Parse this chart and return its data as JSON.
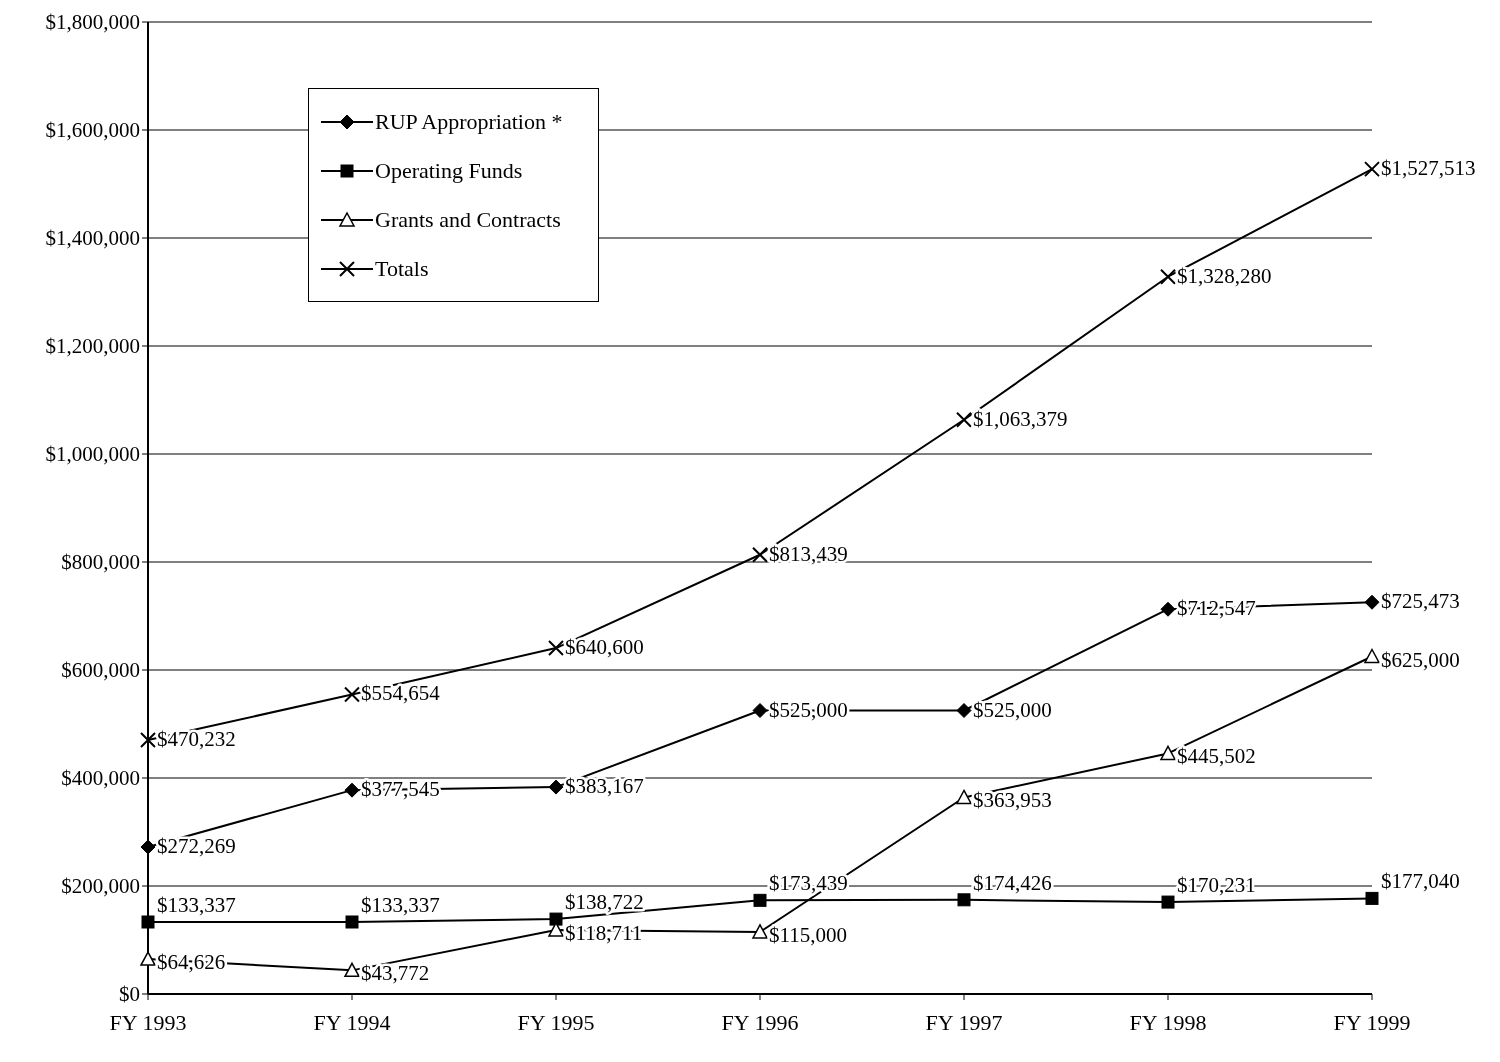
{
  "chart_data": {
    "type": "line",
    "categories": [
      "FY 1993",
      "FY 1994",
      "FY 1995",
      "FY 1996",
      "FY 1997",
      "FY 1998",
      "FY 1999"
    ],
    "series": [
      {
        "name": "RUP Appropriation *",
        "color": "#000000",
        "marker": "diamond",
        "values": [
          272269,
          377545,
          383167,
          525000,
          525000,
          712547,
          725473
        ],
        "value_labels": [
          "$272,269",
          "$377,545",
          "$383,167",
          "$525,000",
          "$525,000",
          "$712,547",
          "$725,473"
        ]
      },
      {
        "name": "Operating Funds",
        "color": "#000000",
        "marker": "square",
        "values": [
          133337,
          133337,
          138722,
          173439,
          174426,
          170231,
          177040
        ],
        "value_labels": [
          "$133,337",
          "$133,337",
          "$138,722",
          "$173,439",
          "$174,426",
          "$170,231",
          "$177,040"
        ]
      },
      {
        "name": "Grants and Contracts",
        "color": "#000000",
        "marker": "triangle",
        "values": [
          64626,
          43772,
          118711,
          115000,
          363953,
          445502,
          625000
        ],
        "value_labels": [
          "$64,626",
          "$43,772",
          "$118,711",
          "$115,000",
          "$363,953",
          "$445,502",
          "$625,000"
        ]
      },
      {
        "name": "Totals",
        "color": "#000000",
        "marker": "cross",
        "values": [
          470232,
          554654,
          640600,
          813439,
          1063379,
          1328280,
          1527513
        ],
        "value_labels": [
          "$470,232",
          "$554,654",
          "$640,600",
          "$813,439",
          "$1,063,379",
          "$1,328,280",
          "$1,527,513"
        ]
      }
    ],
    "ylim": [
      0,
      1800000
    ],
    "yticks": [
      {
        "value": 0,
        "label": "$0"
      },
      {
        "value": 200000,
        "label": "$200,000"
      },
      {
        "value": 400000,
        "label": "$400,000"
      },
      {
        "value": 600000,
        "label": "$600,000"
      },
      {
        "value": 800000,
        "label": "$800,000"
      },
      {
        "value": 1000000,
        "label": "$1,000,000"
      },
      {
        "value": 1200000,
        "label": "$1,200,000"
      },
      {
        "value": 1400000,
        "label": "$1,400,000"
      },
      {
        "value": 1600000,
        "label": "$1,600,000"
      },
      {
        "value": 1800000,
        "label": "$1,800,000"
      }
    ],
    "grid": "y",
    "legend": "top left",
    "line_style": "solid"
  }
}
